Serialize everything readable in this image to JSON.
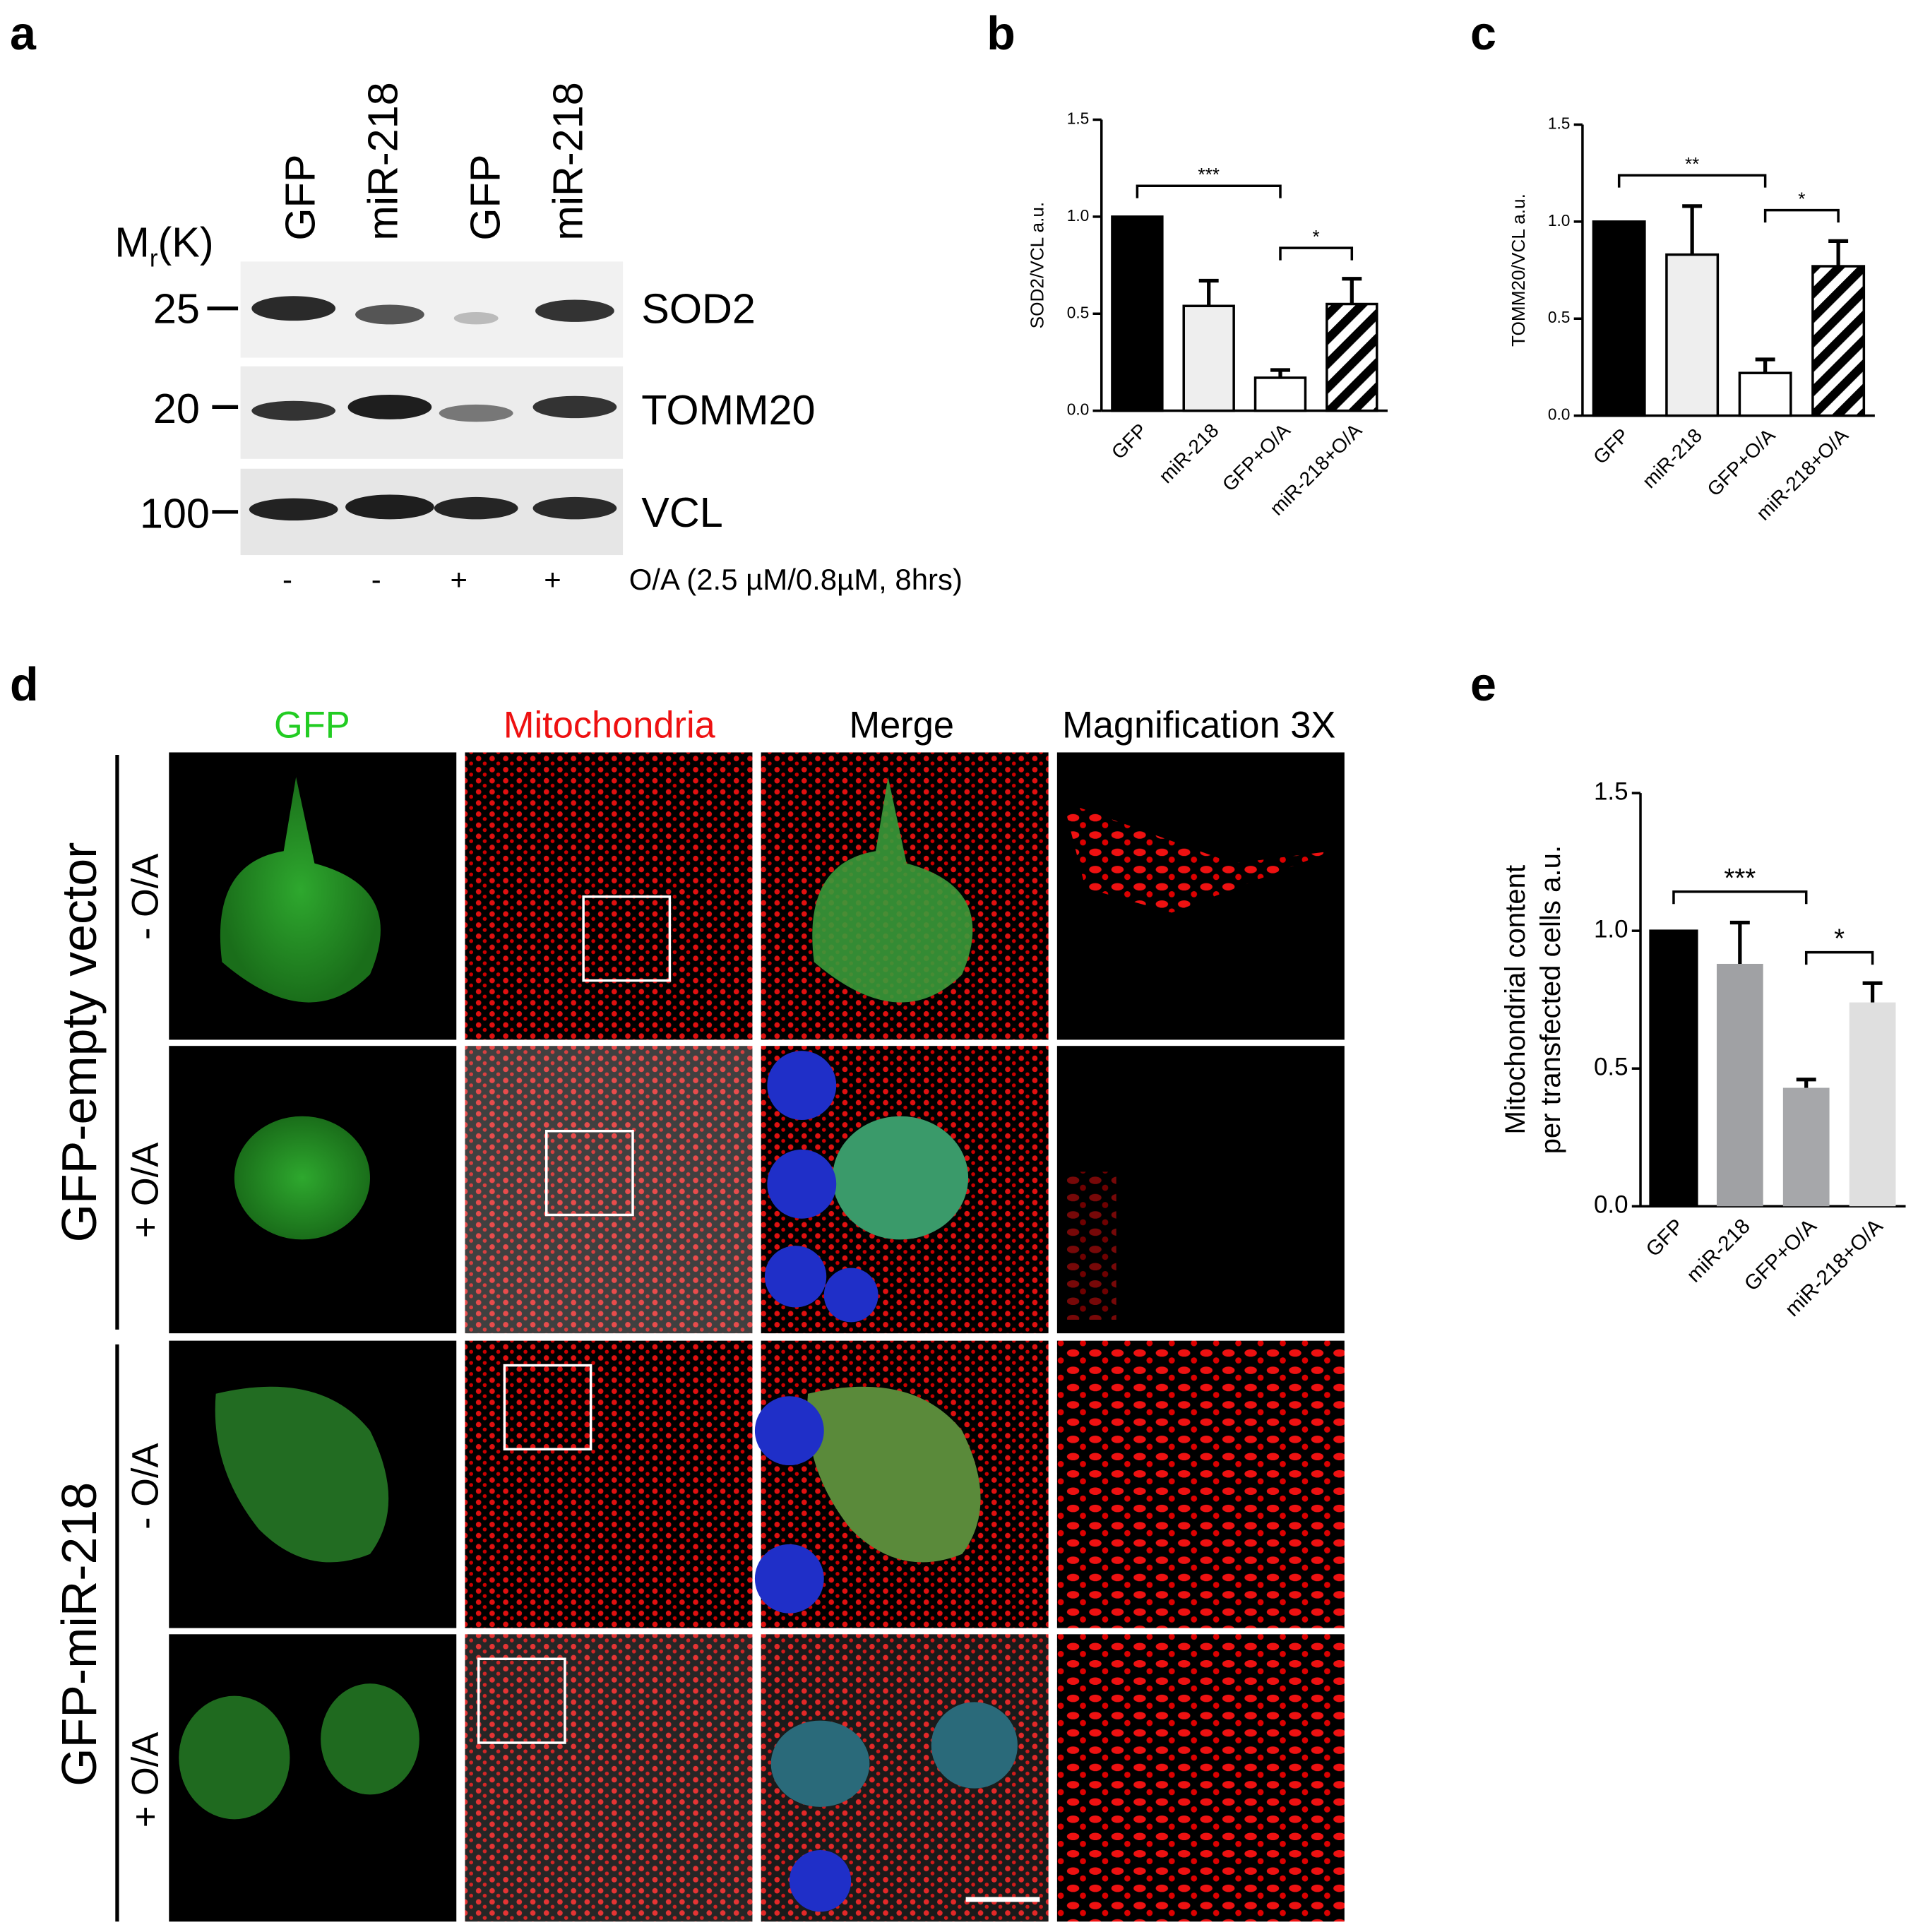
{
  "panel_labels": [
    "a",
    "b",
    "c",
    "d",
    "e"
  ],
  "western_blot": {
    "lanes": [
      "GFP",
      "miR-218",
      "GFP",
      "miR-218"
    ],
    "mw_label": [
      "M",
      "r",
      "(K)"
    ],
    "markers": [
      "25",
      "20",
      "100"
    ],
    "proteins": [
      "SOD2",
      "TOMM20",
      "VCL"
    ],
    "treatment": [
      "-",
      "-",
      "+",
      "+"
    ],
    "treatment_label": "O/A (2.5  µM/0.8µM, 8hrs)"
  },
  "microscopy": {
    "columns": [
      "GFP",
      "Mitochondria",
      "Merge",
      "Magnification 3X"
    ],
    "groups": [
      {
        "label": "GFP-empty vector",
        "conditions": [
          "- O/A",
          "+ O/A"
        ]
      },
      {
        "label": "GFP-miR-218",
        "conditions": [
          "- O/A",
          "+ O/A"
        ]
      }
    ]
  },
  "chart_data": [
    {
      "type": "bar",
      "ylabel": [
        "SOD2/VCL a.u."
      ],
      "categories": [
        "GFP",
        "miR-218",
        "GFP+O/A",
        "miR-218+O/A"
      ],
      "values": [
        1.0,
        0.54,
        0.17,
        0.55
      ],
      "errors": [
        0,
        0.13,
        0.04,
        0.13
      ],
      "colors": [
        "#000000",
        "#eeeeee",
        "#ffffff",
        "#ffffff"
      ],
      "hatched": [
        false,
        false,
        false,
        true
      ],
      "ylim": [
        0,
        1.5
      ],
      "yticks": [
        {
          "value": 0,
          "label": "0.0"
        },
        {
          "value": 0.5,
          "label": "0.5"
        },
        {
          "value": 1,
          "label": "1.0"
        },
        {
          "value": 1.5,
          "label": "1.5"
        }
      ],
      "annotations": [
        {
          "text": "***",
          "from": "GFP",
          "to": "GFP+O/A"
        },
        {
          "text": "*",
          "from": "GFP+O/A",
          "to": "miR-218+O/A"
        }
      ]
    },
    {
      "type": "bar",
      "ylabel": [
        "TOMM20/VCL a.u."
      ],
      "categories": [
        "GFP",
        "miR-218",
        "GFP+O/A",
        "miR-218+O/A"
      ],
      "values": [
        1.0,
        0.83,
        0.22,
        0.77
      ],
      "errors": [
        0,
        0.25,
        0.07,
        0.13
      ],
      "colors": [
        "#000000",
        "#eeeeee",
        "#ffffff",
        "#ffffff"
      ],
      "hatched": [
        false,
        false,
        false,
        true
      ],
      "ylim": [
        0,
        1.5
      ],
      "yticks": [
        {
          "value": 0,
          "label": "0.0"
        },
        {
          "value": 0.5,
          "label": "0.5"
        },
        {
          "value": 1,
          "label": "1.0"
        },
        {
          "value": 1.5,
          "label": "1.5"
        }
      ],
      "annotations": [
        {
          "text": "**",
          "from": "GFP",
          "to": "GFP+O/A"
        },
        {
          "text": "*",
          "from": "GFP+O/A",
          "to": "miR-218+O/A"
        }
      ]
    },
    {
      "type": "bar",
      "ylabel": [
        "Mitochondrial  content",
        "per transfected cells a.u."
      ],
      "categories": [
        "GFP",
        "miR-218",
        "GFP+O/A",
        "miR-218+O/A"
      ],
      "values": [
        1.0,
        0.88,
        0.43,
        0.74
      ],
      "errors": [
        0,
        0.15,
        0.03,
        0.07
      ],
      "colors": [
        "#000000",
        "#a0a1a4",
        "#a6a7aa",
        "#dfdfdf"
      ],
      "hatched": [
        false,
        false,
        false,
        false
      ],
      "ylim": [
        0,
        1.5
      ],
      "yticks": [
        {
          "value": 0,
          "label": "0.0"
        },
        {
          "value": 0.5,
          "label": "0.5"
        },
        {
          "value": 1,
          "label": "1.0"
        },
        {
          "value": 1.5,
          "label": "1.5"
        }
      ],
      "annotations": [
        {
          "text": "***",
          "from": "GFP",
          "to": "GFP+O/A"
        },
        {
          "text": "*",
          "from": "GFP+O/A",
          "to": "miR-218+O/A"
        }
      ]
    }
  ]
}
